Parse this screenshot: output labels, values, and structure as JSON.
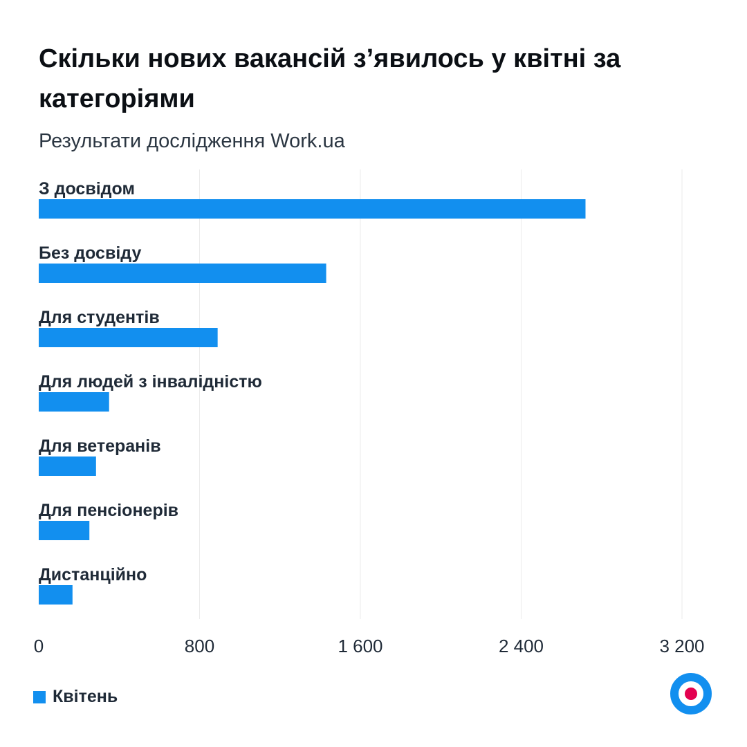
{
  "chart_data": {
    "type": "bar",
    "orientation": "horizontal",
    "title": "Скільки нових вакансій з’явилось у квітні за категоріями",
    "subtitle": "Результати дослідження Work.ua",
    "categories": [
      "З досвідом",
      "Без досвіду",
      "Для студентів",
      "Для людей з інвалідністю",
      "Для ветеранів",
      "Для пенсіонерів",
      "Дистанційно"
    ],
    "series": [
      {
        "name": "Квітень",
        "values": [
          2720,
          1430,
          890,
          350,
          285,
          252,
          168
        ]
      }
    ],
    "xlim": [
      0,
      3200
    ],
    "xticks": [
      0,
      800,
      1600,
      2400,
      3200
    ],
    "xtick_labels": [
      "0",
      "800",
      "1 600",
      "2 400",
      "3 200"
    ],
    "grid": "vertical",
    "legend_position": "bottom-left",
    "colors": {
      "bar": "#128fef",
      "grid": "#ebebeb",
      "logo_ring": "#128fef",
      "logo_dot": "#e3004f"
    }
  }
}
